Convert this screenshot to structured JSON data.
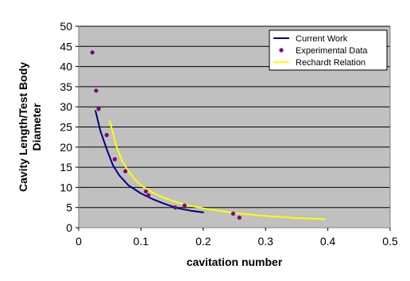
{
  "chart_data": {
    "type": "scatter",
    "title": "",
    "xlabel": "cavitation number",
    "ylabel_lines": [
      "Cavity Length/Test Body",
      "Diameter"
    ],
    "xlim": [
      0,
      0.5
    ],
    "ylim": [
      0,
      50
    ],
    "x_ticks": [
      0,
      0.1,
      0.2,
      0.3,
      0.4,
      0.5
    ],
    "x_tick_labels": [
      "0",
      "0.1",
      "0.2",
      "0.3",
      "0.4",
      "0.5"
    ],
    "y_ticks": [
      0,
      5,
      10,
      15,
      20,
      25,
      30,
      35,
      40,
      45,
      50
    ],
    "y_tick_labels": [
      "0",
      "5",
      "10",
      "15",
      "20",
      "25",
      "30",
      "35",
      "40",
      "45",
      "50"
    ],
    "grid": "horizontal",
    "plot_background": "#c0c0c0",
    "legend_position": "top-right",
    "series": [
      {
        "name": "Current Work",
        "mark": "line",
        "color": "#000080",
        "x": [
          0.027,
          0.035,
          0.045,
          0.055,
          0.065,
          0.08,
          0.1,
          0.12,
          0.14,
          0.16,
          0.18,
          0.2
        ],
        "y": [
          29,
          24,
          19.5,
          15.5,
          13,
          10.5,
          8.5,
          7,
          5.8,
          4.8,
          4.2,
          3.8
        ]
      },
      {
        "name": "Experimental Data",
        "mark": "points",
        "color": "#800080",
        "x": [
          0.022,
          0.028,
          0.032,
          0.045,
          0.058,
          0.075,
          0.108,
          0.112,
          0.155,
          0.17,
          0.248,
          0.258
        ],
        "y": [
          43.5,
          34,
          29.5,
          23,
          17,
          14,
          9,
          8,
          5,
          5.5,
          3.5,
          2.5
        ]
      },
      {
        "name": "Rechardt Relation",
        "mark": "line",
        "color": "#ffff00",
        "x": [
          0.05,
          0.06,
          0.07,
          0.08,
          0.09,
          0.1,
          0.12,
          0.14,
          0.16,
          0.18,
          0.2,
          0.25,
          0.3,
          0.35,
          0.395
        ],
        "y": [
          26.5,
          20.5,
          16.5,
          14,
          12,
          10.5,
          8.6,
          7.2,
          6.2,
          5.4,
          4.8,
          3.6,
          2.9,
          2.4,
          2.1
        ]
      }
    ]
  }
}
